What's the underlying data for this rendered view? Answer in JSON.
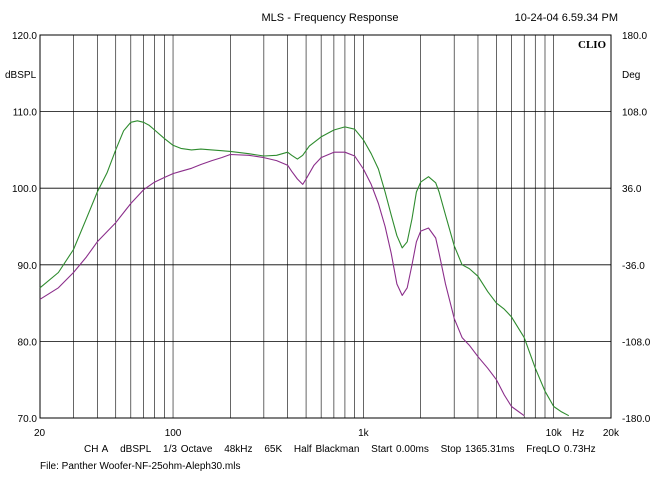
{
  "header": {
    "title": "MLS - Frequency Response",
    "timestamp": "10-24-04 6.59.34 PM",
    "brand": "CLIO"
  },
  "footer": {
    "channel": "CH A",
    "unit": "dBSPL",
    "smoothing": "1/3 Octave",
    "sample_rate": "48kHz",
    "size": "65K",
    "window": "Half Blackman",
    "start": "Start 0.00ms",
    "stop": "Stop 1365.31ms",
    "freqlo": "FreqLO 0.73Hz",
    "file": "File: Panther Woofer-NF-25ohm-Aleph30.mls"
  },
  "colors": {
    "green": "#2e8b2e",
    "purple": "#8b2e8b",
    "grid": "#000000"
  },
  "chart_data": {
    "type": "line",
    "title": "MLS - Frequency Response",
    "xlabel": "Hz",
    "ylabel": "dBSPL",
    "ylabel_right": "Deg",
    "x_scale": "log",
    "xlim": [
      20,
      20000
    ],
    "ylim": [
      70,
      120
    ],
    "ylim_right": [
      -180,
      180
    ],
    "grid": true,
    "y_ticks": [
      "120.0",
      "110.0",
      "100.0",
      "90.0",
      "80.0",
      "70.0"
    ],
    "y_ticks_right": [
      "180.0",
      "108.0",
      "36.0",
      "-36.0",
      "-108.0",
      "-180.0"
    ],
    "x_ticks": [
      {
        "value": 20,
        "label": "20"
      },
      {
        "value": 100,
        "label": "100"
      },
      {
        "value": 1000,
        "label": "1k"
      },
      {
        "value": 10000,
        "label": "10k"
      },
      {
        "value": 20000,
        "label": "20k"
      }
    ],
    "series": [
      {
        "color": "#2e8b2e",
        "points": [
          [
            20,
            87.0
          ],
          [
            25,
            89.0
          ],
          [
            30,
            92.0
          ],
          [
            35,
            96.0
          ],
          [
            40,
            99.5
          ],
          [
            45,
            102.0
          ],
          [
            50,
            105.0
          ],
          [
            55,
            107.5
          ],
          [
            60,
            108.6
          ],
          [
            65,
            108.8
          ],
          [
            70,
            108.6
          ],
          [
            75,
            108.2
          ],
          [
            80,
            107.6
          ],
          [
            90,
            106.5
          ],
          [
            100,
            105.6
          ],
          [
            110,
            105.2
          ],
          [
            125,
            105.0
          ],
          [
            140,
            105.1
          ],
          [
            160,
            105.0
          ],
          [
            180,
            104.9
          ],
          [
            200,
            104.8
          ],
          [
            250,
            104.5
          ],
          [
            300,
            104.2
          ],
          [
            350,
            104.3
          ],
          [
            400,
            104.7
          ],
          [
            420,
            104.3
          ],
          [
            450,
            103.8
          ],
          [
            480,
            104.3
          ],
          [
            520,
            105.5
          ],
          [
            600,
            106.7
          ],
          [
            700,
            107.6
          ],
          [
            800,
            108.0
          ],
          [
            900,
            107.7
          ],
          [
            1000,
            106.3
          ],
          [
            1100,
            104.5
          ],
          [
            1200,
            102.5
          ],
          [
            1300,
            99.5
          ],
          [
            1400,
            96.5
          ],
          [
            1500,
            93.8
          ],
          [
            1600,
            92.2
          ],
          [
            1700,
            93.0
          ],
          [
            1800,
            96.0
          ],
          [
            1900,
            99.5
          ],
          [
            2000,
            100.8
          ],
          [
            2200,
            101.5
          ],
          [
            2400,
            100.7
          ],
          [
            2500,
            99.5
          ],
          [
            2700,
            96.5
          ],
          [
            3000,
            92.5
          ],
          [
            3300,
            90.0
          ],
          [
            3600,
            89.5
          ],
          [
            4000,
            88.5
          ],
          [
            4500,
            86.5
          ],
          [
            5000,
            85.0
          ],
          [
            5500,
            84.2
          ],
          [
            6000,
            83.2
          ],
          [
            7000,
            80.5
          ],
          [
            8000,
            76.5
          ],
          [
            9000,
            73.5
          ],
          [
            10000,
            71.5
          ],
          [
            11000,
            70.8
          ],
          [
            12000,
            70.3
          ]
        ]
      },
      {
        "color": "#8b2e8b",
        "points": [
          [
            20,
            85.5
          ],
          [
            25,
            87.0
          ],
          [
            30,
            89.0
          ],
          [
            35,
            91.0
          ],
          [
            40,
            93.0
          ],
          [
            50,
            95.5
          ],
          [
            60,
            98.0
          ],
          [
            70,
            99.8
          ],
          [
            80,
            100.8
          ],
          [
            90,
            101.4
          ],
          [
            100,
            101.9
          ],
          [
            110,
            102.2
          ],
          [
            125,
            102.6
          ],
          [
            140,
            103.1
          ],
          [
            160,
            103.6
          ],
          [
            180,
            104.0
          ],
          [
            200,
            104.4
          ],
          [
            250,
            104.3
          ],
          [
            300,
            104.0
          ],
          [
            350,
            103.6
          ],
          [
            400,
            103.0
          ],
          [
            420,
            102.2
          ],
          [
            450,
            101.2
          ],
          [
            480,
            100.5
          ],
          [
            500,
            101.2
          ],
          [
            550,
            103.0
          ],
          [
            600,
            104.0
          ],
          [
            700,
            104.7
          ],
          [
            800,
            104.7
          ],
          [
            900,
            104.2
          ],
          [
            1000,
            102.5
          ],
          [
            1100,
            100.5
          ],
          [
            1200,
            98.0
          ],
          [
            1300,
            95.0
          ],
          [
            1400,
            91.5
          ],
          [
            1500,
            87.5
          ],
          [
            1600,
            86.0
          ],
          [
            1700,
            87.0
          ],
          [
            1800,
            90.0
          ],
          [
            1900,
            93.0
          ],
          [
            2000,
            94.4
          ],
          [
            2200,
            94.8
          ],
          [
            2400,
            93.5
          ],
          [
            2500,
            91.5
          ],
          [
            2700,
            87.5
          ],
          [
            3000,
            83.0
          ],
          [
            3300,
            80.5
          ],
          [
            3600,
            79.5
          ],
          [
            4000,
            78.0
          ],
          [
            4500,
            76.5
          ],
          [
            5000,
            75.0
          ],
          [
            5500,
            73.0
          ],
          [
            6000,
            71.5
          ],
          [
            7000,
            70.3
          ]
        ]
      }
    ]
  }
}
